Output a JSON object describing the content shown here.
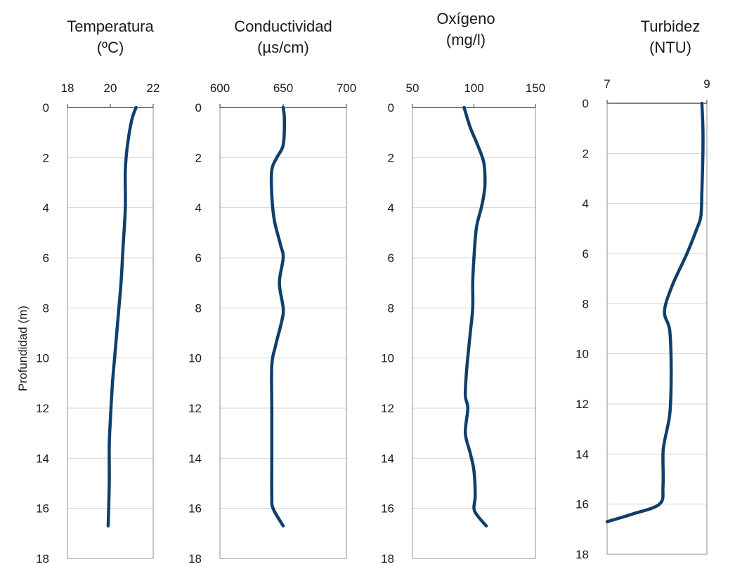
{
  "figure": {
    "ylabel": "Profundidad (m)"
  },
  "chart_data": [
    {
      "type": "line",
      "title": [
        "Temperatura",
        "(ºC)"
      ],
      "xlim": [
        18,
        22
      ],
      "xticks": [
        18,
        20,
        22
      ],
      "ylim": [
        0,
        18
      ],
      "yticks": [
        0,
        2,
        4,
        6,
        8,
        10,
        12,
        14,
        16,
        18
      ],
      "y_inverted": true,
      "grid": "horizontal",
      "color": "#0f3f6b",
      "series": [
        {
          "x": [
            21.2,
            21.0,
            20.8,
            20.7,
            20.7,
            20.6,
            20.5,
            20.4,
            20.3,
            20.2,
            20.1,
            20.0,
            19.95,
            19.95,
            19.9
          ],
          "y": [
            0,
            0.5,
            1.5,
            2.5,
            4.0,
            5.5,
            7.0,
            8.0,
            9.0,
            10.0,
            11.0,
            12.5,
            13.5,
            15.0,
            16.7
          ]
        }
      ]
    },
    {
      "type": "line",
      "title": [
        "Conductividad",
        "(µs/cm)"
      ],
      "xlim": [
        600,
        700
      ],
      "xticks": [
        600,
        650,
        700
      ],
      "ylim": [
        0,
        18
      ],
      "yticks": [
        0,
        2,
        4,
        6,
        8,
        10,
        12,
        14,
        16,
        18
      ],
      "y_inverted": true,
      "grid": "horizontal",
      "color": "#0f3f6b",
      "series": [
        {
          "x": [
            650,
            651,
            650,
            645,
            641,
            641,
            643,
            648,
            650,
            647,
            650,
            649,
            644,
            641,
            641,
            641,
            641,
            642,
            650
          ],
          "y": [
            0,
            0.5,
            1.5,
            2.0,
            2.5,
            3.5,
            4.5,
            5.5,
            6.0,
            7.0,
            8.0,
            8.5,
            9.5,
            10.3,
            12.0,
            14.0,
            15.5,
            16.0,
            16.7
          ]
        }
      ]
    },
    {
      "type": "line",
      "title": [
        "Oxígeno",
        "(mg/l)"
      ],
      "xlim": [
        50,
        150
      ],
      "xticks": [
        50,
        100,
        150
      ],
      "ylim": [
        0,
        18
      ],
      "yticks": [
        0,
        2,
        4,
        6,
        8,
        10,
        12,
        14,
        16,
        18
      ],
      "y_inverted": true,
      "grid": "horizontal",
      "color": "#0f3f6b",
      "series": [
        {
          "x": [
            92,
            97,
            103,
            108,
            109,
            108,
            106,
            102,
            100,
            99,
            99,
            97,
            94,
            93,
            95,
            93,
            97,
            100,
            101,
            100,
            103,
            110
          ],
          "y": [
            0,
            0.8,
            1.5,
            2.2,
            3.0,
            3.5,
            4.0,
            4.8,
            6.0,
            7.0,
            8.0,
            9.0,
            10.5,
            11.5,
            12.0,
            13.0,
            13.8,
            14.5,
            15.5,
            16.0,
            16.3,
            16.7
          ]
        }
      ]
    },
    {
      "type": "line",
      "title": [
        "Turbidez",
        "(NTU)"
      ],
      "xlim": [
        7,
        9
      ],
      "xticks": [
        7,
        9
      ],
      "ylim": [
        0,
        18
      ],
      "yticks": [
        0,
        2,
        4,
        6,
        8,
        10,
        12,
        14,
        16,
        18
      ],
      "y_inverted": true,
      "grid": "horizontal",
      "color": "#0f3f6b",
      "series": [
        {
          "x": [
            8.9,
            8.92,
            8.92,
            8.9,
            8.88,
            8.8,
            8.6,
            8.3,
            8.15,
            8.25,
            8.28,
            8.28,
            8.25,
            8.15,
            8.12,
            8.12,
            8.05,
            7.5,
            7.0
          ],
          "y": [
            0,
            1.0,
            2.0,
            3.5,
            4.5,
            5.0,
            6.0,
            7.3,
            8.3,
            9.0,
            10.0,
            11.5,
            12.5,
            13.5,
            14.0,
            15.3,
            16.0,
            16.4,
            16.7
          ]
        }
      ]
    }
  ]
}
